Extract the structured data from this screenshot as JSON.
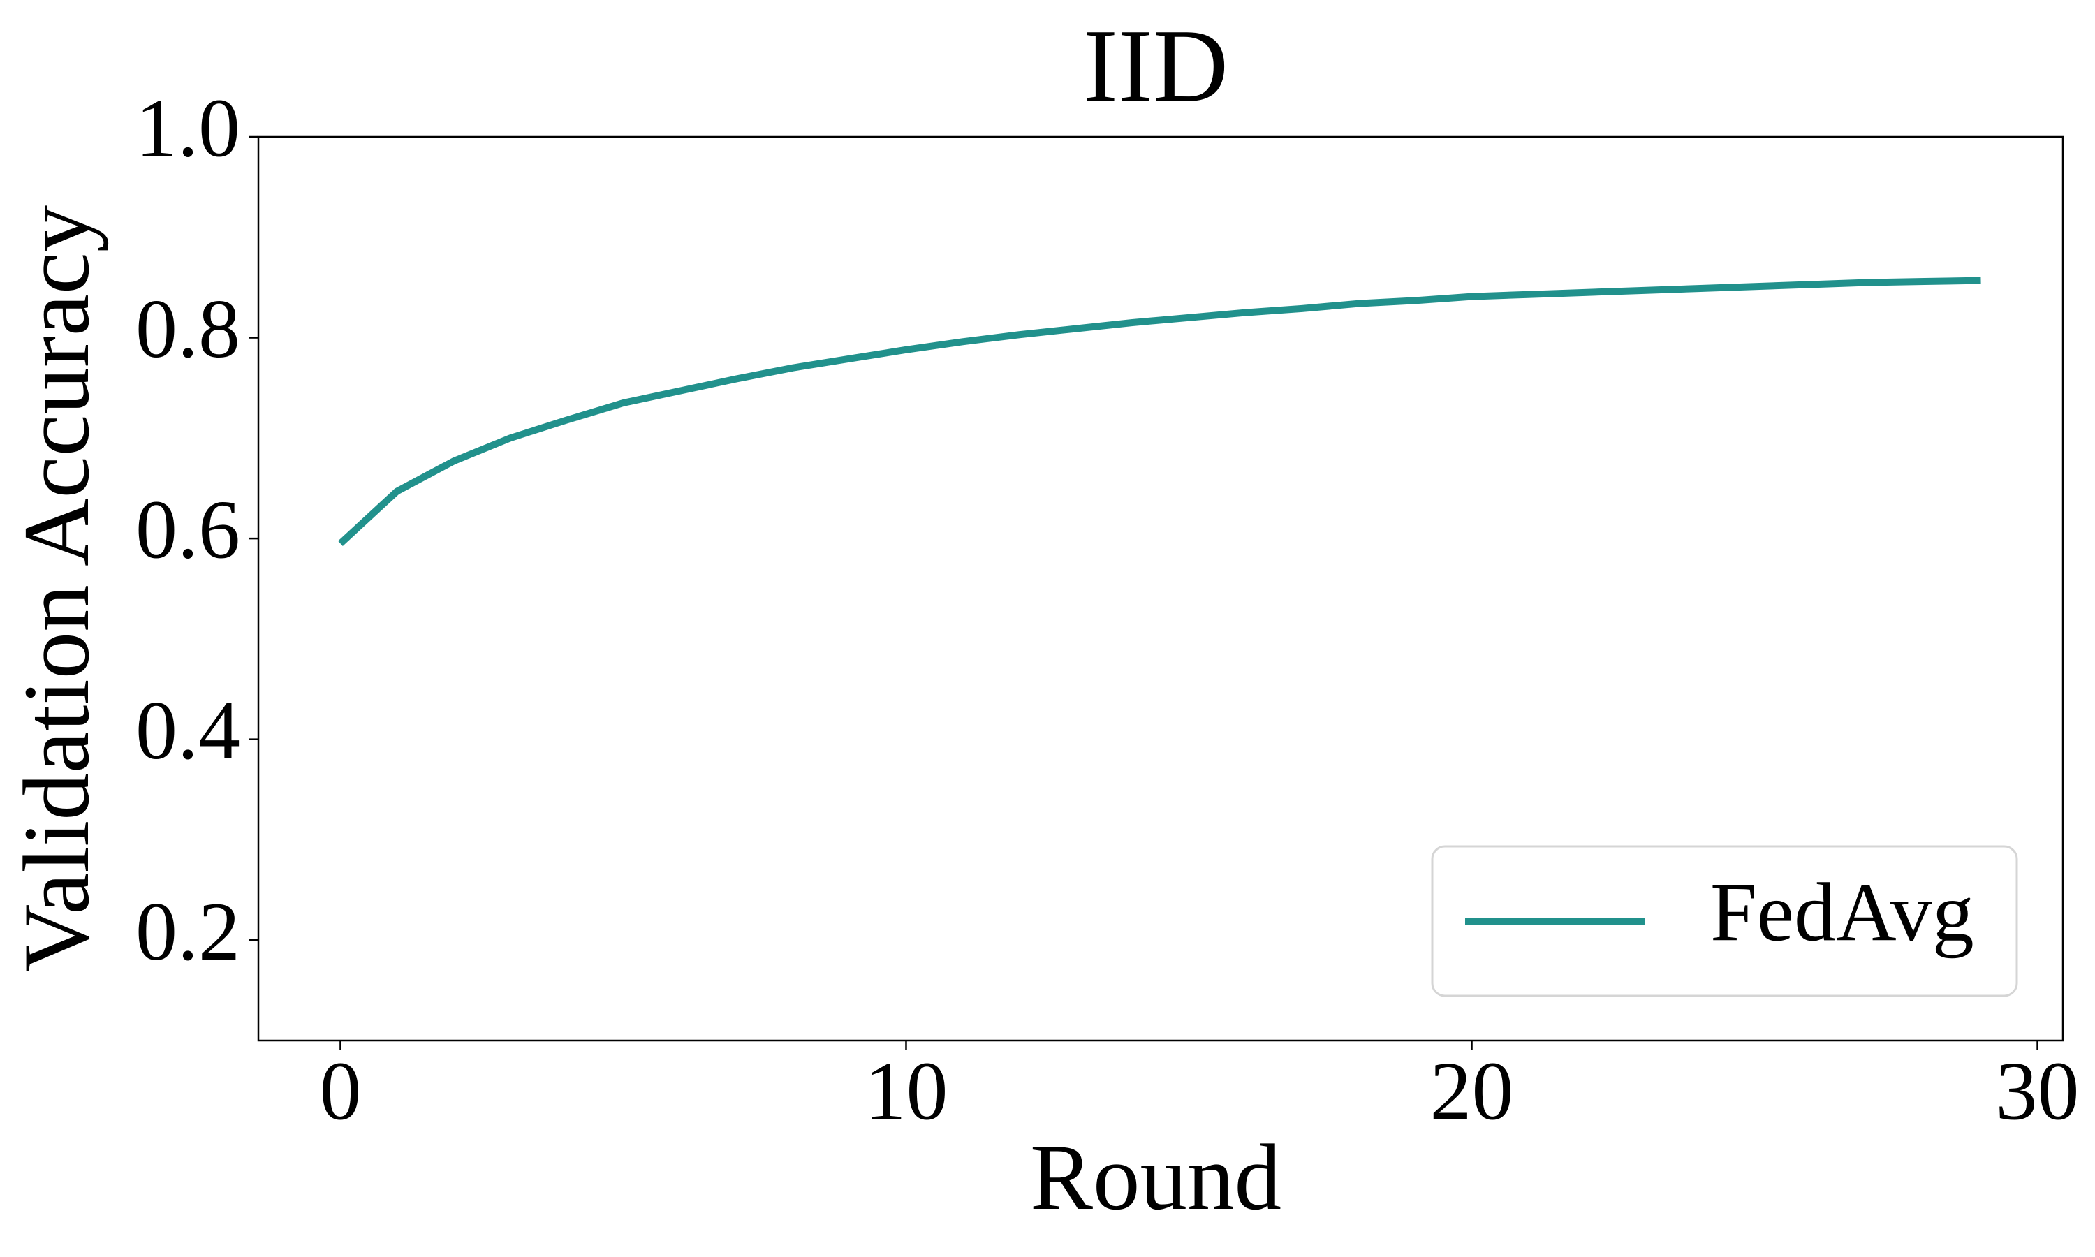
{
  "chart_data": {
    "type": "line",
    "title": "IID",
    "x_label": "Round",
    "y_label": "Validation Accuracy",
    "x": [
      0,
      1,
      2,
      3,
      4,
      5,
      6,
      7,
      8,
      9,
      10,
      11,
      12,
      13,
      14,
      15,
      16,
      17,
      18,
      19,
      20,
      21,
      22,
      23,
      24,
      25,
      26,
      27,
      28,
      29
    ],
    "series": [
      {
        "name": "FedAvg",
        "color": "#21918c",
        "values": [
          0.595,
          0.647,
          0.677,
          0.7,
          0.718,
          0.735,
          0.747,
          0.759,
          0.77,
          0.779,
          0.788,
          0.796,
          0.803,
          0.809,
          0.815,
          0.82,
          0.825,
          0.829,
          0.834,
          0.837,
          0.841,
          0.843,
          0.845,
          0.847,
          0.849,
          0.851,
          0.853,
          0.855,
          0.856,
          0.857
        ]
      }
    ],
    "xlim": [
      -1.45,
      30.45
    ],
    "ylim": [
      0.1,
      1.0
    ],
    "xticks": [
      0,
      10,
      20,
      30
    ],
    "yticks": [
      0.2,
      0.4,
      0.6,
      0.8,
      {
        "value": 1.0,
        "label": "1.0"
      }
    ],
    "grid": false,
    "legend": "lower right"
  }
}
